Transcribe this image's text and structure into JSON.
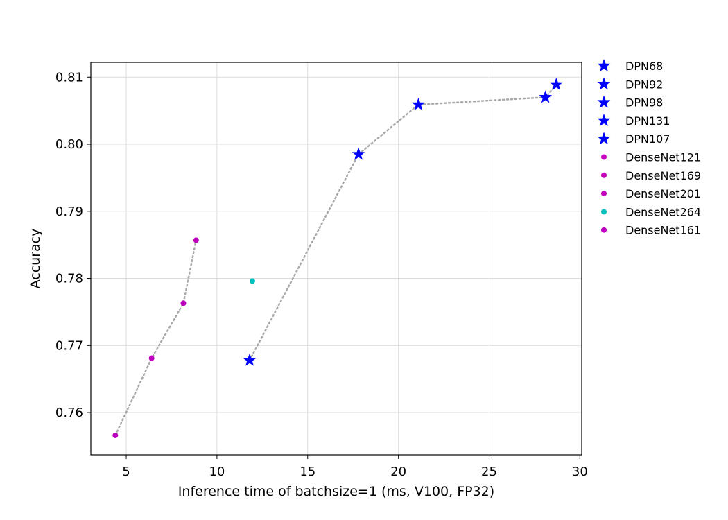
{
  "chart_data": {
    "type": "scatter",
    "title": "",
    "xlabel": "Inference time of batchsize=1 (ms, V100, FP32)",
    "ylabel": "Accuracy",
    "xlim": [
      3.05,
      30.1
    ],
    "ylim": [
      0.7537,
      0.8122
    ],
    "xticks": [
      5,
      10,
      15,
      20,
      25,
      30
    ],
    "yticks": [
      0.76,
      0.77,
      0.78,
      0.79,
      0.8,
      0.81
    ],
    "xtick_labels": [
      "5",
      "10",
      "15",
      "20",
      "25",
      "30"
    ],
    "ytick_labels": [
      "0.76",
      "0.77",
      "0.78",
      "0.79",
      "0.80",
      "0.81"
    ],
    "grid": true,
    "legend_position": "outside-right",
    "series": [
      {
        "name": "DPN68",
        "x": [
          11.8
        ],
        "y": [
          0.7678
        ],
        "marker": "star",
        "color": "#0000ff"
      },
      {
        "name": "DPN92",
        "x": [
          17.8
        ],
        "y": [
          0.7985
        ],
        "marker": "star",
        "color": "#0000ff"
      },
      {
        "name": "DPN98",
        "x": [
          21.1
        ],
        "y": [
          0.8059
        ],
        "marker": "star",
        "color": "#0000ff"
      },
      {
        "name": "DPN131",
        "x": [
          28.1
        ],
        "y": [
          0.807
        ],
        "marker": "star",
        "color": "#0000ff"
      },
      {
        "name": "DPN107",
        "x": [
          28.7
        ],
        "y": [
          0.8089
        ],
        "marker": "star",
        "color": "#0000ff"
      },
      {
        "name": "DenseNet121",
        "x": [
          4.4
        ],
        "y": [
          0.7566
        ],
        "marker": "circle",
        "color": "#bf00bf"
      },
      {
        "name": "DenseNet169",
        "x": [
          6.4
        ],
        "y": [
          0.7681
        ],
        "marker": "circle",
        "color": "#bf00bf"
      },
      {
        "name": "DenseNet201",
        "x": [
          8.15
        ],
        "y": [
          0.7763
        ],
        "marker": "circle",
        "color": "#bf00bf"
      },
      {
        "name": "DenseNet264",
        "x": [
          11.95
        ],
        "y": [
          0.7796
        ],
        "marker": "circle",
        "color": "#00bfbf"
      },
      {
        "name": "DenseNet161",
        "x": [
          8.85
        ],
        "y": [
          0.7857
        ],
        "marker": "circle",
        "color": "#bf00bf"
      }
    ],
    "trend_lines": [
      {
        "group": "DPN",
        "x": [
          11.8,
          17.8,
          21.1,
          28.1,
          28.7
        ],
        "y": [
          0.7678,
          0.7985,
          0.8059,
          0.807,
          0.8089
        ],
        "color": "#a8a8a8",
        "style": "dotted"
      },
      {
        "group": "DenseNet",
        "x": [
          4.4,
          6.4,
          8.15,
          8.85
        ],
        "y": [
          0.7566,
          0.7681,
          0.7763,
          0.7857
        ],
        "color": "#a8a8a8",
        "style": "dotted"
      }
    ]
  }
}
